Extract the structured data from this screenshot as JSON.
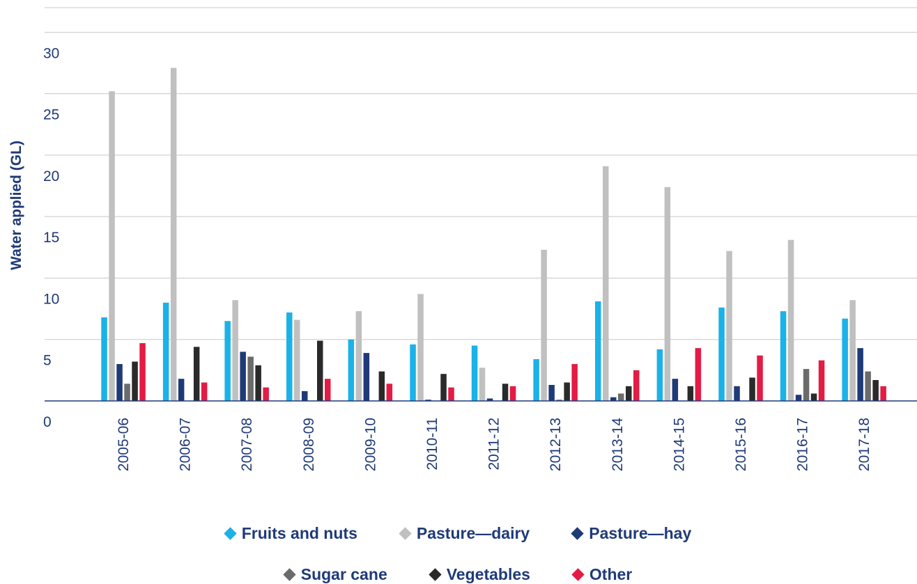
{
  "chart_data": {
    "type": "bar",
    "ylabel": "Water applied (GL)",
    "xlabel": "",
    "ylim": [
      0,
      30
    ],
    "yticks": [
      "0",
      "5",
      "10",
      "15",
      "20",
      "25",
      "30"
    ],
    "grid": true,
    "legend_position": "bottom",
    "categories": [
      "2005-06",
      "2006-07",
      "2007-08",
      "2008-09",
      "2009-10",
      "2010-11",
      "2011-12",
      "2012-13",
      "2013-14",
      "2014-15",
      "2015-16",
      "2016-17",
      "2017-18"
    ],
    "series": [
      {
        "name": "Fruits and nuts",
        "color": "#1ab2e8",
        "values": [
          6.8,
          8.0,
          6.5,
          7.2,
          5.0,
          4.6,
          4.5,
          3.4,
          8.1,
          4.2,
          7.6,
          7.3,
          6.7
        ]
      },
      {
        "name": "Pasture—dairy",
        "color": "#c0c0c0",
        "values": [
          25.2,
          27.1,
          8.2,
          6.6,
          7.3,
          8.7,
          2.7,
          12.3,
          19.1,
          17.4,
          12.2,
          13.1,
          8.2
        ]
      },
      {
        "name": "Pasture—hay",
        "color": "#1f3a78",
        "values": [
          3.0,
          1.8,
          4.0,
          0.8,
          3.9,
          0.1,
          0.2,
          1.3,
          0.3,
          1.8,
          1.2,
          0.5,
          4.3
        ]
      },
      {
        "name": "Sugar cane",
        "color": "#6b6b6b",
        "values": [
          1.4,
          0.0,
          3.6,
          0.0,
          0.0,
          0.0,
          0.0,
          0.1,
          0.6,
          0.0,
          0.0,
          2.6,
          2.4
        ]
      },
      {
        "name": "Vegetables",
        "color": "#2a2a2a",
        "values": [
          3.2,
          4.4,
          2.9,
          4.9,
          2.4,
          2.2,
          1.4,
          1.5,
          1.2,
          1.2,
          1.9,
          0.6,
          1.7
        ]
      },
      {
        "name": "Other",
        "color": "#e41b44",
        "values": [
          4.7,
          1.5,
          1.1,
          1.8,
          1.4,
          1.1,
          1.2,
          3.0,
          2.5,
          4.3,
          3.7,
          3.3,
          1.2
        ]
      }
    ]
  },
  "legend": {
    "row1": [
      {
        "label": "Fruits and nuts",
        "color": "#1ab2e8"
      },
      {
        "label": "Pasture—dairy",
        "color": "#c0c0c0"
      },
      {
        "label": "Pasture—hay",
        "color": "#1f3a78"
      }
    ],
    "row2": [
      {
        "label": "Sugar cane",
        "color": "#6b6b6b"
      },
      {
        "label": "Vegetables",
        "color": "#2a2a2a"
      },
      {
        "label": "Other",
        "color": "#e41b44"
      }
    ]
  }
}
